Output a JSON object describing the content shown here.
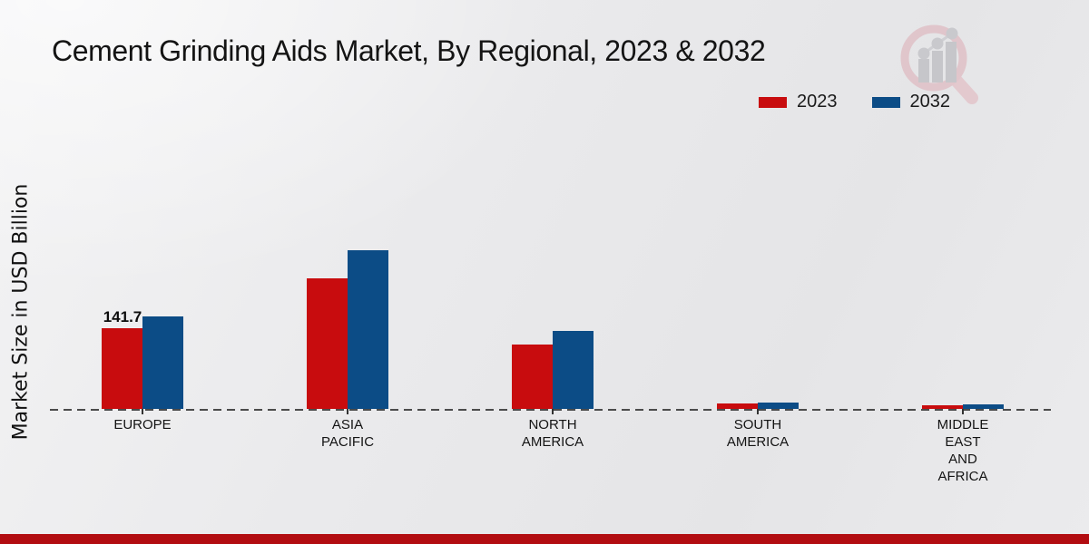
{
  "title": "Cement Grinding Aids Market, By Regional, 2023 & 2032",
  "colors": {
    "series_2023": "#c80c0e",
    "series_2032": "#0c4c86",
    "footer_accent": "#b20d11",
    "baseline": "#4b4b4b"
  },
  "chart_data": {
    "type": "bar",
    "title": "Cement Grinding Aids Market, By Regional, 2023 & 2032",
    "ylabel": "Market Size in USD Billion",
    "xlabel": "",
    "categories": [
      "EUROPE",
      "ASIA PACIFIC",
      "NORTH AMERICA",
      "SOUTH AMERICA",
      "MIDDLE EAST AND AFRICA"
    ],
    "category_lines": [
      [
        "EUROPE"
      ],
      [
        "ASIA",
        "PACIFIC"
      ],
      [
        "NORTH",
        "AMERICA"
      ],
      [
        "SOUTH",
        "AMERICA"
      ],
      [
        "MIDDLE",
        "EAST",
        "AND",
        "AFRICA"
      ]
    ],
    "series": [
      {
        "name": "2023",
        "color": "#c80c0e",
        "values": [
          141.7,
          230,
          113,
          10,
          6
        ]
      },
      {
        "name": "2032",
        "color": "#0c4c86",
        "values": [
          164,
          280,
          137,
          12,
          8
        ]
      }
    ],
    "value_labels": [
      {
        "series": 0,
        "category": 0,
        "text": "141.7"
      }
    ],
    "baseline_style": "dashed",
    "grid": false,
    "legend_position": "top-right",
    "units": "USD Billion"
  }
}
